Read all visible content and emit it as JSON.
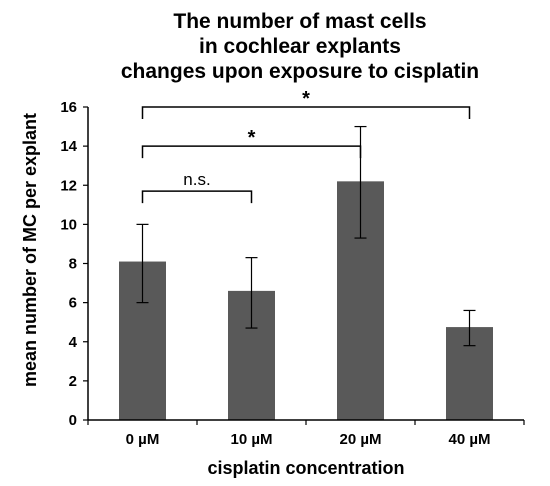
{
  "chart_data": {
    "type": "bar",
    "title_lines": [
      "The number of mast cells",
      "in cochlear explants",
      "changes upon exposure to cisplatin"
    ],
    "xlabel": "cisplatin concentration",
    "ylabel": "mean number of MC per explant",
    "categories": [
      "0 µM",
      "10 µM",
      "20 µM",
      "40 µM"
    ],
    "values": [
      8.1,
      6.6,
      12.2,
      4.75
    ],
    "error_low": [
      6.0,
      4.7,
      9.3,
      3.8
    ],
    "error_high": [
      10.0,
      8.3,
      15.0,
      5.6
    ],
    "ylim": [
      0,
      16
    ],
    "yticks": [
      0,
      2,
      4,
      6,
      8,
      10,
      12,
      14,
      16
    ],
    "bar_color": "#595959",
    "grid": false,
    "significance": [
      {
        "from": 0,
        "to": 1,
        "level": 11.7,
        "label": "n.s."
      },
      {
        "from": 0,
        "to": 2,
        "level": 14.0,
        "label": "*"
      },
      {
        "from": 0,
        "to": 3,
        "level": 16.0,
        "label": "*"
      }
    ]
  }
}
